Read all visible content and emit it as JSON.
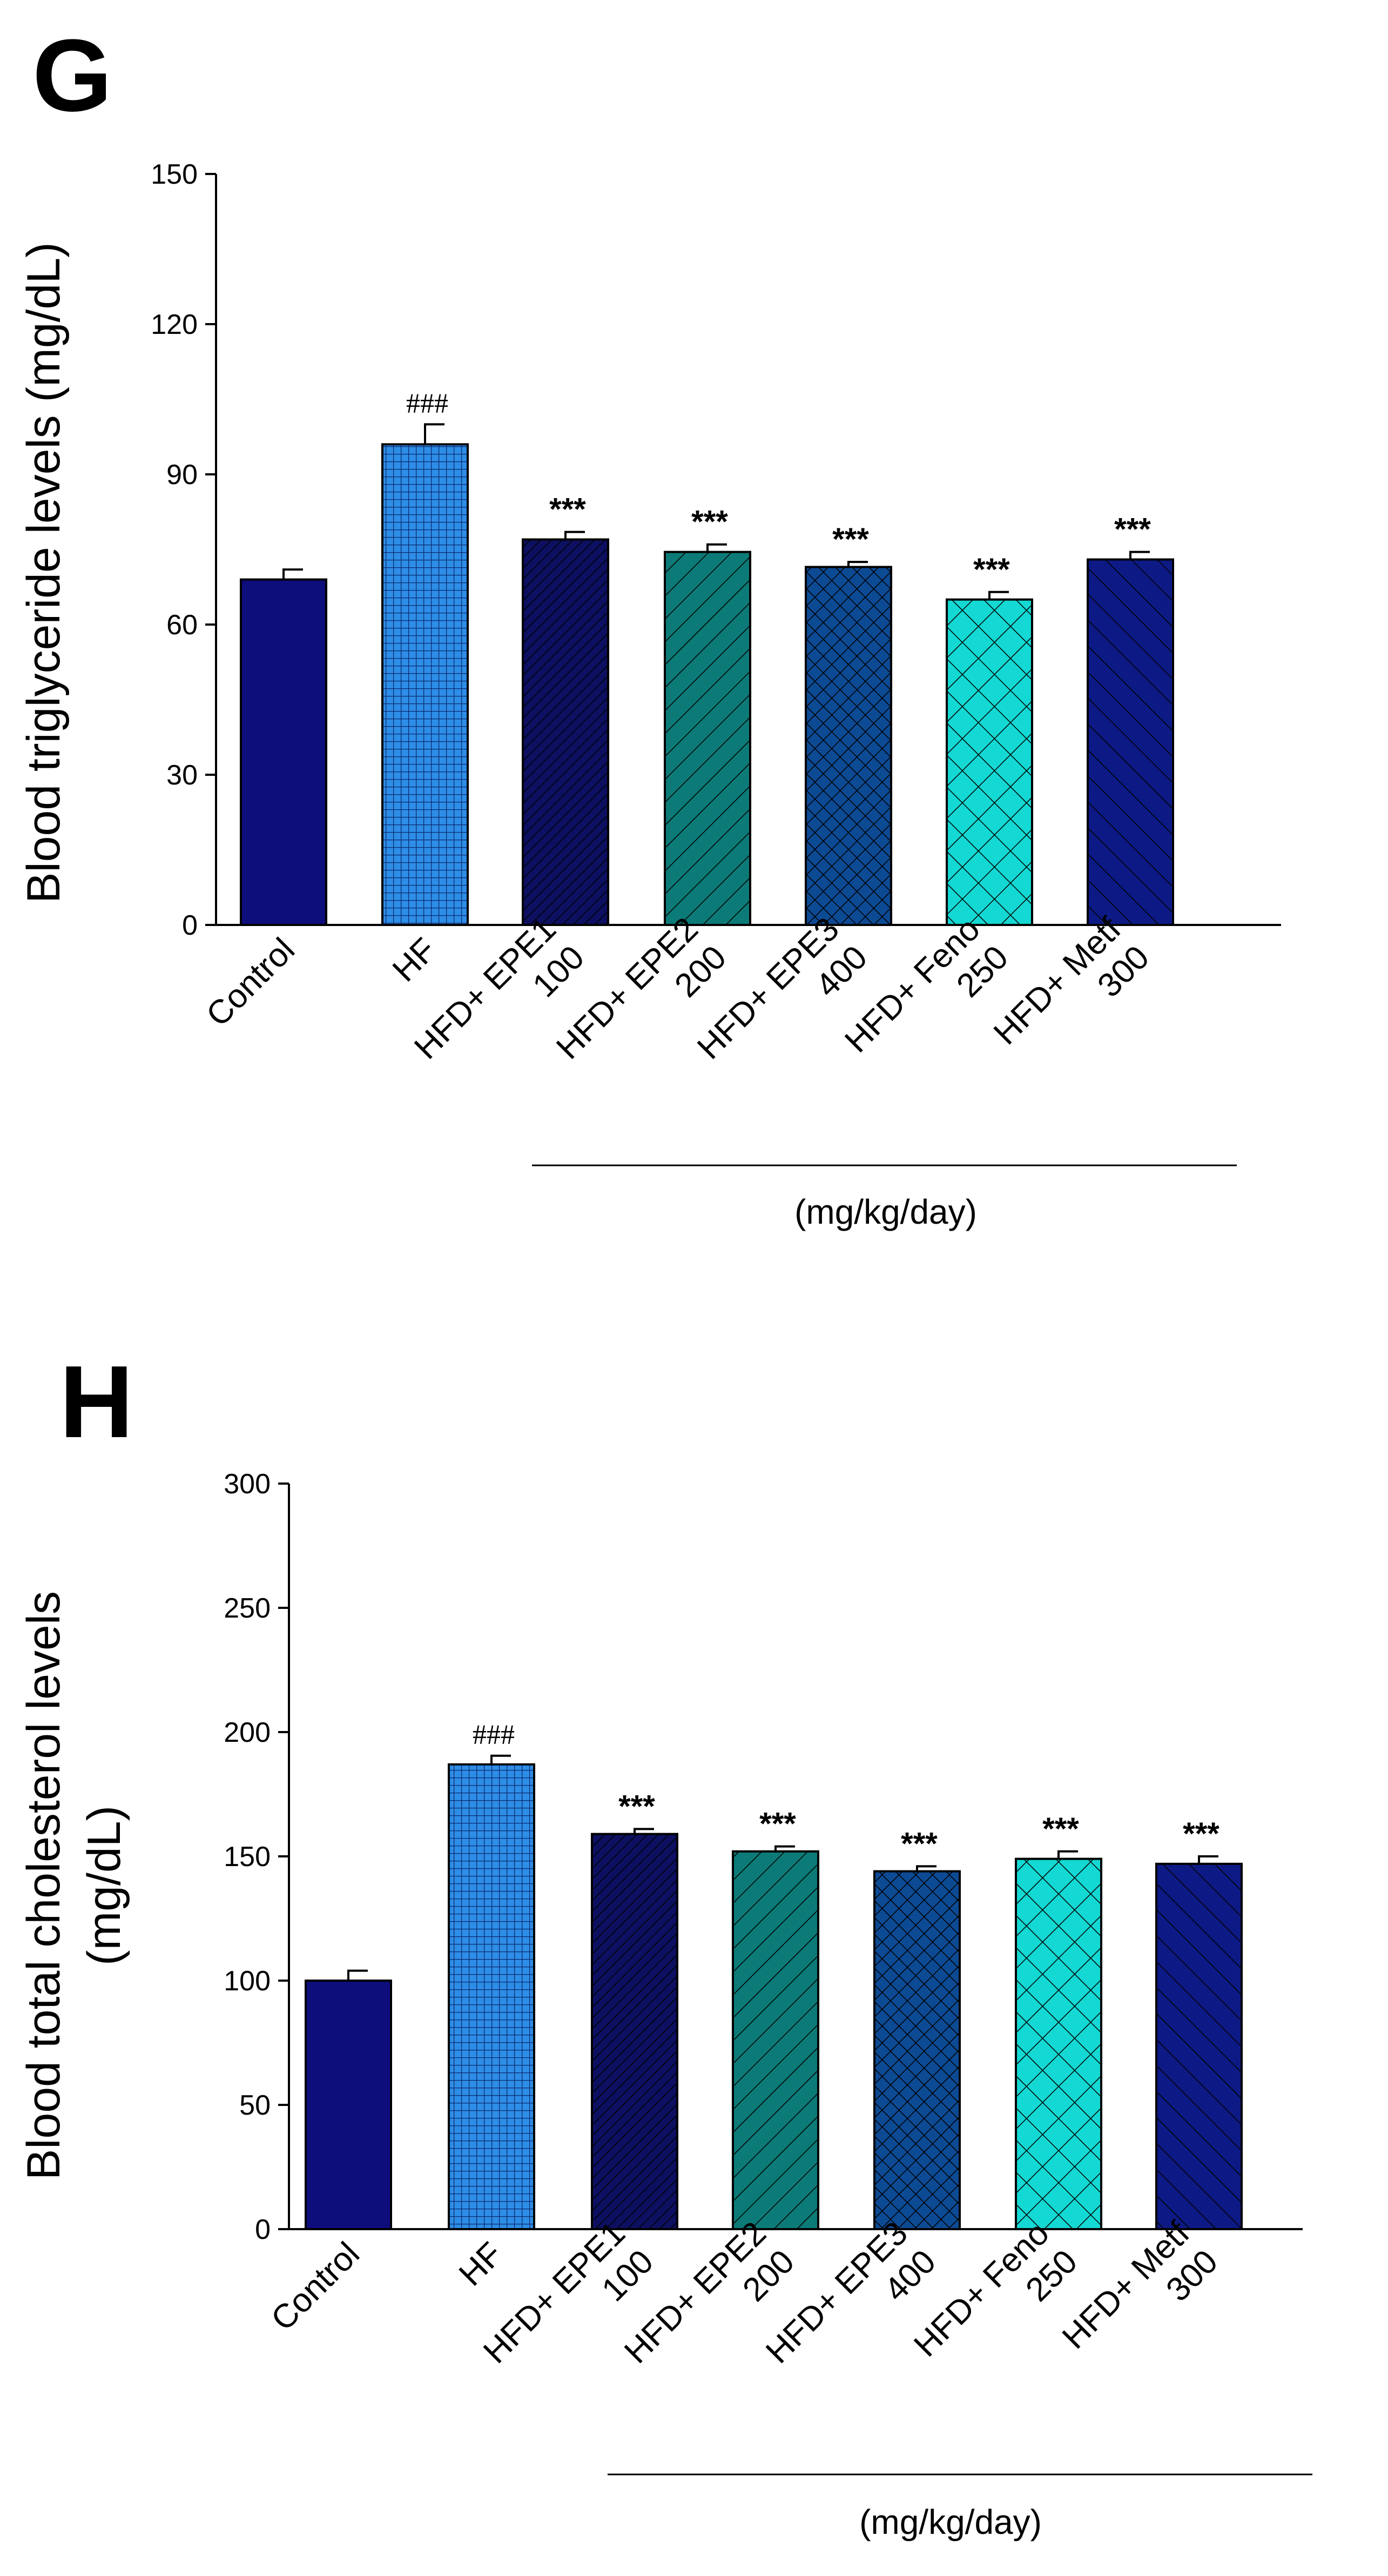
{
  "chart_data": [
    {
      "type": "bar",
      "panel_label": "G",
      "ylabel": "Blood triglyceride levels (mg/dL)",
      "ylim": [
        0,
        150
      ],
      "yticks": [
        "0",
        "30",
        "60",
        "90",
        "120",
        "150"
      ],
      "categories": [
        [
          "Control"
        ],
        [
          "HF"
        ],
        [
          "HFD+ EPE1",
          "100"
        ],
        [
          "HFD+ EPE2",
          "200"
        ],
        [
          "HFD+ EPE3",
          "400"
        ],
        [
          "HFD+ Feno",
          "250"
        ],
        [
          "HFD+ Metf",
          "300"
        ]
      ],
      "values": [
        69,
        96,
        77,
        74.5,
        71.5,
        65,
        73
      ],
      "errors": [
        2,
        4,
        1.5,
        1.5,
        1,
        1.5,
        1.5
      ],
      "annotations": [
        "",
        "###",
        "***",
        "***",
        "***",
        "***",
        "***"
      ],
      "group_label": "(mg/kg/day)"
    },
    {
      "type": "bar",
      "panel_label": "H",
      "ylabel_lines": [
        "Blood total cholesterol levels",
        "(mg/dL)"
      ],
      "ylim": [
        0,
        300
      ],
      "yticks": [
        "0",
        "50",
        "100",
        "150",
        "200",
        "250",
        "300"
      ],
      "categories": [
        [
          "Control"
        ],
        [
          "HF"
        ],
        [
          "HFD+ EPE1",
          "100"
        ],
        [
          "HFD+ EPE2",
          "200"
        ],
        [
          "HFD+ EPE3",
          "400"
        ],
        [
          "HFD+ Feno",
          "250"
        ],
        [
          "HFD+ Metf",
          "300"
        ]
      ],
      "values": [
        100,
        187,
        159,
        152,
        144,
        149,
        147
      ],
      "errors": [
        4,
        3.5,
        2,
        2,
        2,
        3,
        3
      ],
      "annotations": [
        "",
        "###",
        "***",
        "***",
        "***",
        "***",
        "***"
      ],
      "group_label": "(mg/kg/day)"
    }
  ],
  "bar_styles": [
    {
      "fill": "#0d0d7c",
      "pattern": "none"
    },
    {
      "fill": "#2e8de6",
      "pattern": "grid"
    },
    {
      "fill": "#0d1060",
      "pattern": "diag-fine"
    },
    {
      "fill": "#0c7b78",
      "pattern": "diag-wide"
    },
    {
      "fill": "#0d4a94",
      "pattern": "cross"
    },
    {
      "fill": "#14d8d3",
      "pattern": "cross-wide"
    },
    {
      "fill": "#0d1a85",
      "pattern": "back-diag"
    }
  ]
}
